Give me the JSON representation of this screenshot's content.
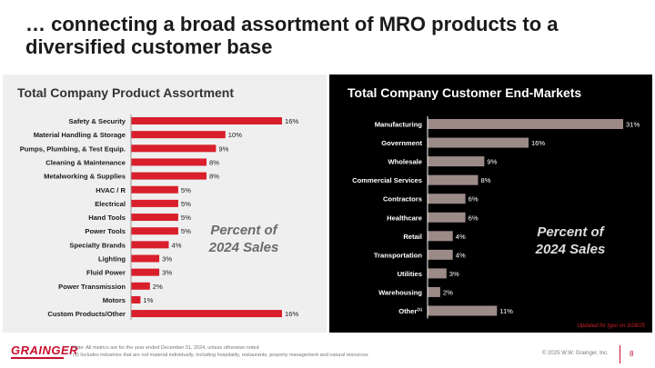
{
  "slide": {
    "title_line1": "… connecting a broad assortment of MRO products to a",
    "title_line2": "diversified customer base"
  },
  "colors": {
    "left_bar": "#d91f2b",
    "right_bar": "#9c8a87",
    "left_panel_bg": "#efefef",
    "right_panel_bg": "#000000",
    "brand": "#c8102e"
  },
  "chart_data": [
    {
      "type": "bar",
      "orientation": "horizontal",
      "title": "Total Company Product Assortment",
      "annotation": [
        "Percent of",
        "2024 Sales"
      ],
      "categories": [
        "Safety & Security",
        "Material Handling & Storage",
        "Pumps, Plumbing, & Test Equip.",
        "Cleaning & Maintenance",
        "Metalworking & Supplies",
        "HVAC / R",
        "Electrical",
        "Hand Tools",
        "Power Tools",
        "Specialty Brands",
        "Lighting",
        "Fluid Power",
        "Power Transmission",
        "Motors",
        "Custom Products/Other"
      ],
      "values": [
        16,
        10,
        9,
        8,
        8,
        5,
        5,
        5,
        5,
        4,
        3,
        3,
        2,
        1,
        16
      ],
      "value_labels": [
        "16%",
        "10%",
        "9%",
        "8%",
        "8%",
        "5%",
        "5%",
        "5%",
        "5%",
        "4%",
        "3%",
        "3%",
        "2%",
        "1%",
        "16%"
      ],
      "xlim": [
        0,
        16
      ],
      "grid": false
    },
    {
      "type": "bar",
      "orientation": "horizontal",
      "title": "Total Company Customer End-Markets",
      "annotation": [
        "Percent of",
        "2024 Sales"
      ],
      "categories": [
        "Manufacturing",
        "Government",
        "Wholesale",
        "Commercial Services",
        "Contractors",
        "Healthcare",
        "Retail",
        "Transportation",
        "Utilities",
        "Warehousing",
        "Other"
      ],
      "category_superscripts": [
        "",
        "",
        "",
        "",
        "",
        "",
        "",
        "",
        "",
        "",
        "(1)"
      ],
      "values": [
        31,
        16,
        9,
        8,
        6,
        6,
        4,
        4,
        3,
        2,
        11
      ],
      "value_labels": [
        "31%",
        "16%",
        "9%",
        "8%",
        "6%",
        "6%",
        "4%",
        "4%",
        "3%",
        "2%",
        "11%"
      ],
      "xlim": [
        0,
        31
      ],
      "grid": false
    }
  ],
  "update_note": "Updated for typo on 3/28/25",
  "footer": {
    "logo": "GRAINGER",
    "note_line1": "Note: All metrics are for the year ended December 31, 2024, unless otherwise noted",
    "note_line2": "(1)    Includes industries that are not material individually, including hospitality, restaurants, property management and natural resources",
    "copyright": "© 2025 W.W. Grainger, Inc.",
    "page_number": "8"
  }
}
